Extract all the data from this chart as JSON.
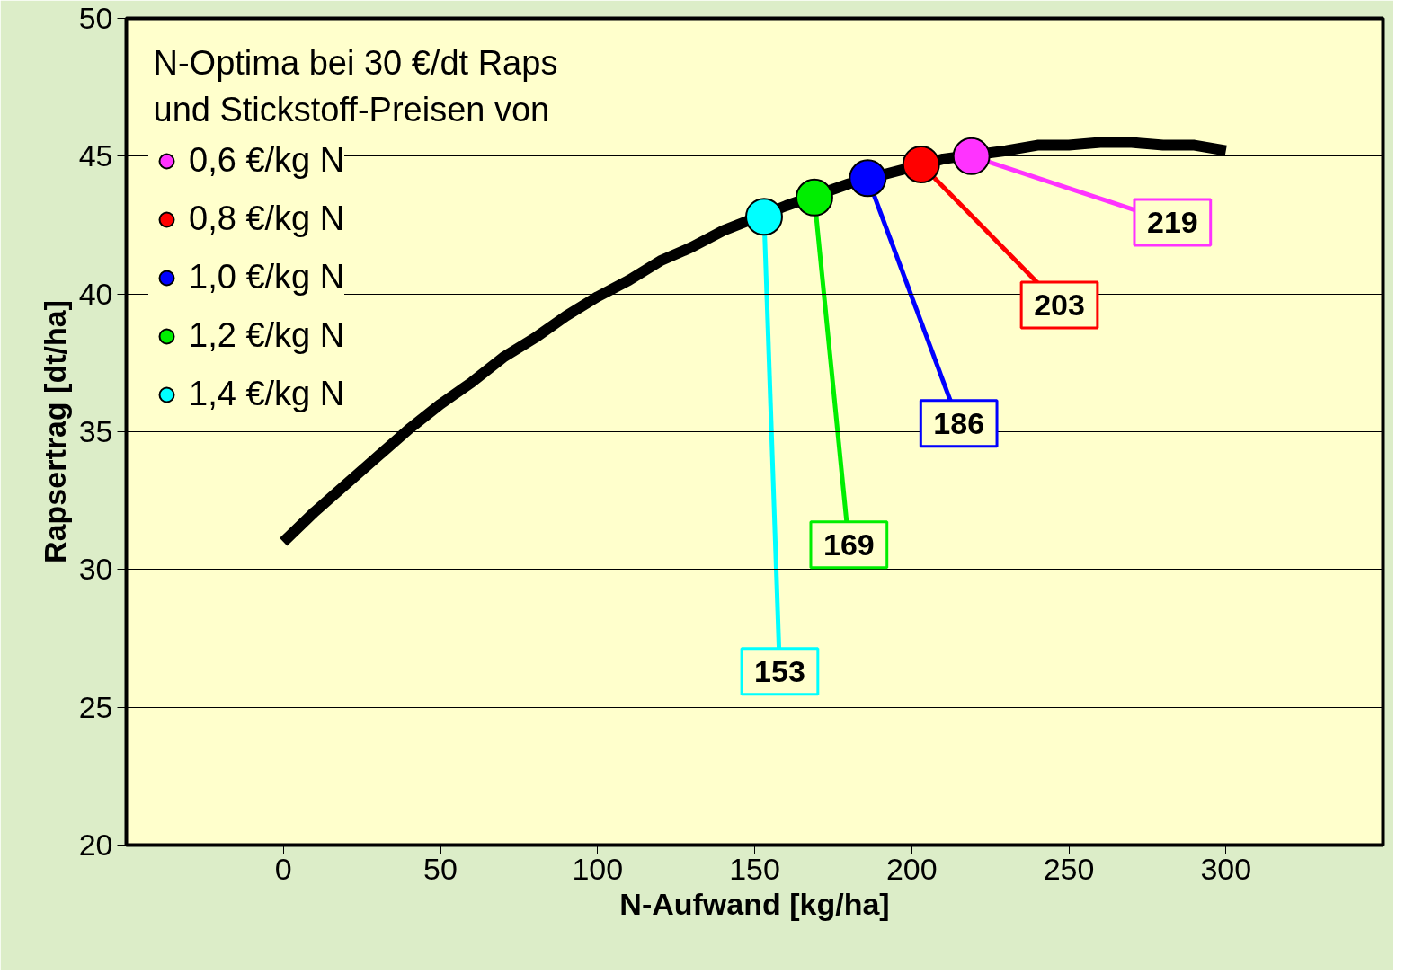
{
  "chart_data": {
    "type": "scatter",
    "xlabel": "N-Aufwand [kg/ha]",
    "ylabel": "Rapsertrag [dt/ha]",
    "legend_title": "N-Optima bei 30 €/dt Raps\nund Stickstoff-Preisen von",
    "xlim": [
      -50,
      350
    ],
    "ylim": [
      20,
      50
    ],
    "xticks": [
      0,
      50,
      100,
      150,
      200,
      250,
      300
    ],
    "yticks": [
      20,
      25,
      30,
      35,
      40,
      45,
      50
    ],
    "grid": "y",
    "legend": "top left",
    "series": [
      {
        "type": "line",
        "color": "#000000",
        "x": [
          0,
          10,
          20,
          30,
          40,
          50,
          60,
          70,
          80,
          90,
          100,
          110,
          120,
          130,
          140,
          160,
          180,
          190,
          210,
          230,
          240,
          250,
          260,
          270,
          280,
          290,
          300
        ],
        "values": [
          31.0,
          32.1,
          33.1,
          34.1,
          35.1,
          36.0,
          36.8,
          37.7,
          38.4,
          39.2,
          39.9,
          40.5,
          41.2,
          41.7,
          42.3,
          43.2,
          44.0,
          44.3,
          44.9,
          45.2,
          45.4,
          45.4,
          45.5,
          45.5,
          45.4,
          45.4,
          45.2
        ]
      },
      {
        "name": "0,6 €/kg N",
        "color": "#ff33ff",
        "marker": "circle",
        "x": [
          219
        ],
        "values": [
          45.0
        ]
      },
      {
        "name": "0,8 €/kg N",
        "color": "#ff0000",
        "marker": "circle",
        "x": [
          203
        ],
        "values": [
          44.7
        ]
      },
      {
        "name": "1,0 €/kg N",
        "color": "#0000ff",
        "marker": "circle",
        "x": [
          186
        ],
        "values": [
          44.2
        ]
      },
      {
        "name": "1,2 €/kg N",
        "color": "#00ee00",
        "marker": "circle",
        "x": [
          169
        ],
        "values": [
          43.5
        ]
      },
      {
        "name": "1,4 €/kg N",
        "color": "#00ffff",
        "marker": "circle",
        "x": [
          153
        ],
        "values": [
          42.8
        ]
      }
    ],
    "annotations": [
      {
        "text": "219",
        "x": 219,
        "y": 45.0
      },
      {
        "text": "203",
        "x": 203,
        "y": 44.7
      },
      {
        "text": "186",
        "x": 186,
        "y": 44.2
      },
      {
        "text": "169",
        "x": 169,
        "y": 43.5
      },
      {
        "text": "153",
        "x": 153,
        "y": 42.8
      }
    ]
  }
}
